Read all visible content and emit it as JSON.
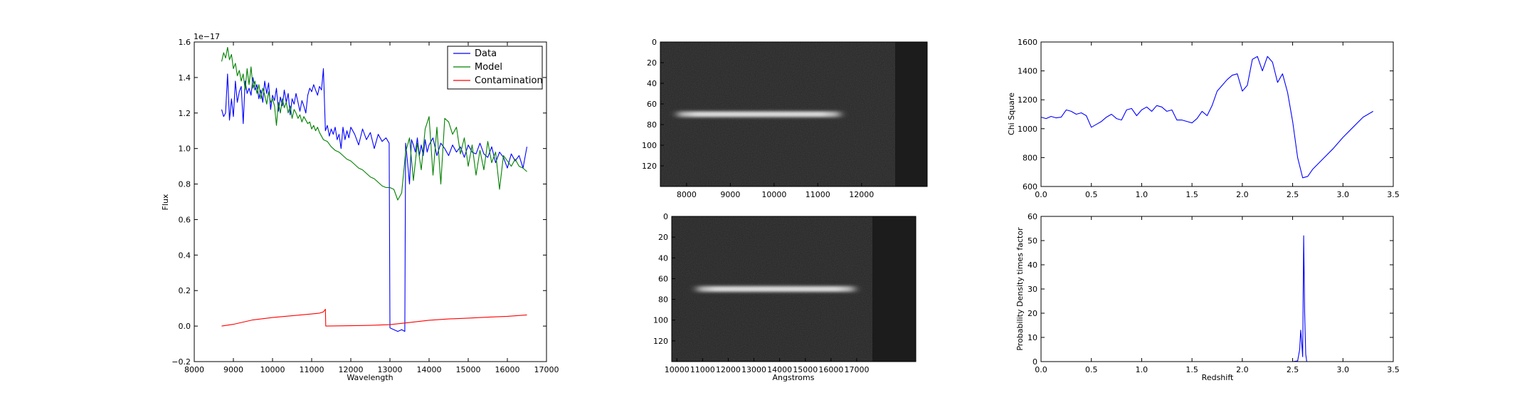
{
  "chart_data": [
    {
      "type": "line",
      "panel": "spectrum",
      "xlabel": "Wavelength",
      "ylabel": "Flux",
      "offset_text": "1e−17",
      "xlim": [
        8000,
        17000
      ],
      "ylim": [
        -0.2,
        1.6
      ],
      "xticks": [
        "8000",
        "9000",
        "10000",
        "11000",
        "12000",
        "13000",
        "14000",
        "15000",
        "16000",
        "17000"
      ],
      "yticks": [
        "−0.2",
        "0.0",
        "0.2",
        "0.4",
        "0.6",
        "0.8",
        "1.0",
        "1.2",
        "1.4",
        "1.6"
      ],
      "legend_position": "top-right",
      "series": [
        {
          "name": "Data",
          "color": "#0000ff",
          "x": [
            8700,
            8750,
            8800,
            8850,
            8900,
            8950,
            9000,
            9050,
            9100,
            9150,
            9200,
            9250,
            9300,
            9350,
            9400,
            9450,
            9500,
            9550,
            9600,
            9650,
            9700,
            9750,
            9800,
            9850,
            9900,
            9950,
            10000,
            10050,
            10100,
            10150,
            10200,
            10250,
            10300,
            10350,
            10400,
            10450,
            10500,
            10550,
            10600,
            10650,
            10700,
            10750,
            10800,
            10850,
            10900,
            10950,
            11000,
            11050,
            11100,
            11150,
            11200,
            11250,
            11300,
            11350,
            11400,
            11450,
            11500,
            11550,
            11600,
            11650,
            11700,
            11750,
            11800,
            11850,
            11900,
            11950,
            12000,
            12100,
            12200,
            12300,
            12400,
            12500,
            12600,
            12700,
            12800,
            12900,
            12980,
            13000,
            13100,
            13200,
            13300,
            13380,
            13400,
            13450,
            13500,
            13550,
            13600,
            13650,
            13700,
            13750,
            13800,
            13850,
            13900,
            13950,
            14000,
            14100,
            14200,
            14300,
            14400,
            14500,
            14600,
            14700,
            14800,
            14900,
            15000,
            15100,
            15200,
            15300,
            15400,
            15500,
            15600,
            15700,
            15800,
            15900,
            16000,
            16100,
            16200,
            16300,
            16400,
            16500
          ],
          "y": [
            1.22,
            1.18,
            1.2,
            1.42,
            1.16,
            1.28,
            1.18,
            1.38,
            1.26,
            1.32,
            1.35,
            1.14,
            1.38,
            1.31,
            1.34,
            1.3,
            1.4,
            1.33,
            1.36,
            1.28,
            1.33,
            1.26,
            1.38,
            1.31,
            1.37,
            1.22,
            1.3,
            1.27,
            1.34,
            1.21,
            1.29,
            1.24,
            1.33,
            1.26,
            1.31,
            1.19,
            1.28,
            1.25,
            1.31,
            1.26,
            1.21,
            1.27,
            1.24,
            1.2,
            1.3,
            1.34,
            1.32,
            1.36,
            1.33,
            1.3,
            1.35,
            1.33,
            1.45,
            1.1,
            1.13,
            1.07,
            1.11,
            1.08,
            1.12,
            1.05,
            1.08,
            1.0,
            1.12,
            1.05,
            1.1,
            1.06,
            1.12,
            1.08,
            1.02,
            1.11,
            1.05,
            1.09,
            1.0,
            1.08,
            1.04,
            1.06,
            1.03,
            -0.01,
            -0.02,
            -0.03,
            -0.02,
            -0.03,
            1.03,
            0.92,
            0.8,
            1.05,
            1.02,
            0.98,
            1.06,
            0.96,
            1.02,
            0.96,
            1.05,
            0.98,
            1.02,
            1.06,
            0.96,
            1.03,
            1.0,
            0.96,
            1.02,
            0.98,
            1.01,
            0.95,
            1.02,
            0.98,
            0.97,
            1.03,
            0.97,
            0.95,
            1.01,
            0.92,
            0.98,
            0.95,
            0.89,
            0.97,
            0.93,
            0.96,
            0.89,
            1.01
          ]
        },
        {
          "name": "Model",
          "color": "#008000",
          "x": [
            8700,
            8750,
            8800,
            8850,
            8900,
            8950,
            9000,
            9050,
            9100,
            9150,
            9200,
            9250,
            9300,
            9350,
            9400,
            9450,
            9500,
            9550,
            9600,
            9650,
            9700,
            9750,
            9800,
            9850,
            9900,
            9950,
            10000,
            10050,
            10100,
            10150,
            10200,
            10250,
            10300,
            10350,
            10400,
            10450,
            10500,
            10550,
            10600,
            10650,
            10700,
            10750,
            10800,
            10850,
            10900,
            10950,
            11000,
            11050,
            11100,
            11150,
            11200,
            11300,
            11400,
            11500,
            11600,
            11700,
            11800,
            11900,
            12000,
            12100,
            12200,
            12300,
            12400,
            12500,
            12600,
            12700,
            12800,
            12900,
            13000,
            13100,
            13200,
            13300,
            13400,
            13500,
            13600,
            13700,
            13800,
            13900,
            14000,
            14100,
            14200,
            14300,
            14400,
            14500,
            14600,
            14700,
            14800,
            14900,
            15000,
            15100,
            15200,
            15300,
            15400,
            15500,
            15600,
            15700,
            15800,
            15900,
            16000,
            16100,
            16200,
            16300,
            16400,
            16500
          ],
          "y": [
            1.49,
            1.54,
            1.51,
            1.57,
            1.5,
            1.53,
            1.45,
            1.48,
            1.41,
            1.44,
            1.38,
            1.42,
            1.33,
            1.45,
            1.36,
            1.46,
            1.34,
            1.38,
            1.31,
            1.36,
            1.28,
            1.34,
            1.3,
            1.25,
            1.32,
            1.26,
            1.28,
            1.24,
            1.13,
            1.26,
            1.2,
            1.28,
            1.23,
            1.26,
            1.2,
            1.24,
            1.17,
            1.22,
            1.2,
            1.17,
            1.19,
            1.15,
            1.18,
            1.16,
            1.14,
            1.15,
            1.11,
            1.13,
            1.1,
            1.12,
            1.09,
            1.05,
            1.04,
            1.01,
            0.99,
            0.98,
            0.96,
            0.94,
            0.93,
            0.91,
            0.89,
            0.88,
            0.86,
            0.84,
            0.83,
            0.81,
            0.79,
            0.78,
            0.78,
            0.77,
            0.71,
            0.75,
            0.98,
            1.06,
            0.82,
            1.03,
            0.88,
            1.11,
            1.18,
            0.85,
            1.12,
            0.8,
            1.17,
            1.15,
            1.08,
            1.12,
            0.97,
            1.06,
            0.9,
            1.02,
            0.85,
            0.99,
            0.88,
            1.04,
            0.92,
            0.98,
            0.77,
            0.96,
            0.93,
            0.9,
            0.94,
            0.9,
            0.89,
            0.87
          ]
        },
        {
          "name": "Contamination",
          "color": "#ff0000",
          "x": [
            8700,
            9000,
            9500,
            10000,
            10500,
            11000,
            11200,
            11300,
            11350,
            11360,
            12000,
            12500,
            13000,
            13500,
            14000,
            14500,
            15000,
            15500,
            16000,
            16500
          ],
          "y": [
            0.0,
            0.01,
            0.035,
            0.048,
            0.058,
            0.068,
            0.073,
            0.08,
            0.095,
            0.0,
            0.002,
            0.004,
            0.008,
            0.02,
            0.033,
            0.04,
            0.045,
            0.05,
            0.055,
            0.063
          ]
        }
      ]
    },
    {
      "type": "heatmap",
      "panel": "spectrum-image-top",
      "xticks": [
        "8000",
        "9000",
        "10000",
        "11000",
        "12000"
      ],
      "yticks": [
        "0",
        "20",
        "40",
        "60",
        "80",
        "100",
        "120"
      ],
      "xlim": [
        7400,
        13500
      ],
      "ylim": [
        140,
        0
      ],
      "trace_row": 70,
      "trace_x_range": [
        7800,
        11500
      ]
    },
    {
      "type": "heatmap",
      "panel": "spectrum-image-bottom",
      "xlabel": "Angstroms",
      "xticks": [
        "10000",
        "11000",
        "12000",
        "13000",
        "14000",
        "15000",
        "16000",
        "17000"
      ],
      "yticks": [
        "0",
        "20",
        "40",
        "60",
        "80",
        "100",
        "120"
      ],
      "xlim": [
        9800,
        19300
      ],
      "ylim": [
        140,
        0
      ],
      "trace_row": 70,
      "trace_x_range": [
        10800,
        16900
      ]
    },
    {
      "type": "line",
      "panel": "chi-square",
      "ylabel": "Chi Square",
      "xlim": [
        0,
        3.5
      ],
      "ylim": [
        600,
        1600
      ],
      "xticks": [
        "0.0",
        "0.5",
        "1.0",
        "1.5",
        "2.0",
        "2.5",
        "3.0",
        "3.5"
      ],
      "yticks": [
        "600",
        "800",
        "1000",
        "1200",
        "1400",
        "1600"
      ],
      "series": [
        {
          "color": "#0000ff",
          "x": [
            0.0,
            0.05,
            0.1,
            0.15,
            0.2,
            0.25,
            0.3,
            0.35,
            0.4,
            0.45,
            0.5,
            0.55,
            0.6,
            0.65,
            0.7,
            0.75,
            0.8,
            0.85,
            0.9,
            0.95,
            1.0,
            1.05,
            1.1,
            1.15,
            1.2,
            1.25,
            1.3,
            1.35,
            1.4,
            1.45,
            1.5,
            1.55,
            1.6,
            1.65,
            1.7,
            1.75,
            1.8,
            1.85,
            1.9,
            1.95,
            2.0,
            2.05,
            2.1,
            2.15,
            2.2,
            2.25,
            2.3,
            2.35,
            2.4,
            2.45,
            2.5,
            2.55,
            2.6,
            2.65,
            2.7,
            2.8,
            2.9,
            3.0,
            3.1,
            3.2,
            3.3
          ],
          "y": [
            1080,
            1070,
            1085,
            1075,
            1080,
            1130,
            1120,
            1100,
            1110,
            1090,
            1010,
            1030,
            1050,
            1080,
            1100,
            1070,
            1060,
            1130,
            1140,
            1090,
            1130,
            1150,
            1120,
            1160,
            1150,
            1120,
            1130,
            1060,
            1060,
            1050,
            1040,
            1070,
            1120,
            1090,
            1160,
            1260,
            1300,
            1340,
            1370,
            1380,
            1260,
            1300,
            1480,
            1500,
            1400,
            1500,
            1460,
            1320,
            1380,
            1250,
            1050,
            800,
            660,
            670,
            720,
            790,
            860,
            940,
            1010,
            1080,
            1120
          ]
        }
      ]
    },
    {
      "type": "line",
      "panel": "probability-density",
      "xlabel": "Redshift",
      "ylabel": "Probability Density times factor",
      "xlim": [
        0,
        3.5
      ],
      "ylim": [
        0,
        60
      ],
      "xticks": [
        "0.0",
        "0.5",
        "1.0",
        "1.5",
        "2.0",
        "2.5",
        "3.0",
        "3.5"
      ],
      "yticks": [
        "0",
        "10",
        "20",
        "30",
        "40",
        "50",
        "60"
      ],
      "series": [
        {
          "color": "#0000ff",
          "x": [
            0.0,
            2.5,
            2.55,
            2.57,
            2.58,
            2.59,
            2.6,
            2.61,
            2.62,
            2.63,
            2.64,
            2.7,
            3.3
          ],
          "y": [
            0,
            0,
            0.3,
            5,
            13,
            8,
            2,
            52,
            20,
            3,
            0,
            0,
            0
          ]
        }
      ]
    }
  ]
}
